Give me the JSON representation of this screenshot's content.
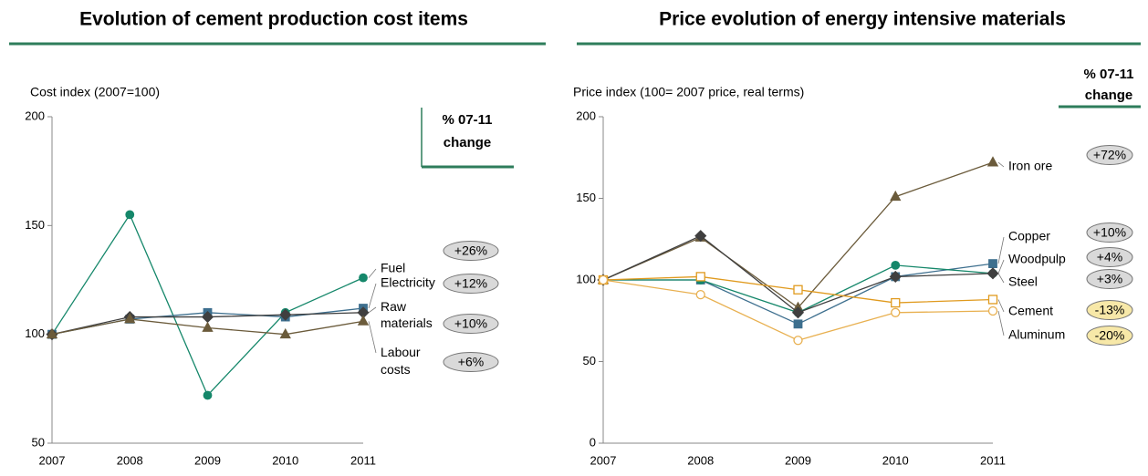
{
  "chart_data": [
    {
      "type": "line",
      "title": "Evolution of cement production cost items",
      "ylabel": "Cost index (2007=100)",
      "note": [
        "% 07-11",
        "change"
      ],
      "categories": [
        "2007",
        "2008",
        "2009",
        "2010",
        "2011"
      ],
      "ylim": [
        50,
        200
      ],
      "yticks": [
        50,
        100,
        150,
        200
      ],
      "series": [
        {
          "name": "Fuel",
          "color": "#15876a",
          "marker": "circle",
          "values": [
            100,
            155,
            72,
            110,
            126
          ],
          "change": "+26%"
        },
        {
          "name": "Electricity",
          "color": "#3d6f8e",
          "marker": "square",
          "values": [
            100,
            107,
            110,
            108,
            112
          ],
          "change": "+12%"
        },
        {
          "name": "Raw materials",
          "color": "#3f3f3f",
          "marker": "diamond",
          "values": [
            100,
            108,
            108,
            109,
            110
          ],
          "change": "+10%"
        },
        {
          "name": "Labour costs",
          "color": "#6b5b3b",
          "marker": "triangle",
          "values": [
            100,
            107,
            103,
            100,
            106
          ],
          "change": "+6%"
        }
      ]
    },
    {
      "type": "line",
      "title": "Price evolution of energy intensive materials",
      "ylabel": "Price index (100= 2007 price, real terms)",
      "note": [
        "% 07-11",
        "change"
      ],
      "categories": [
        "2007",
        "2008",
        "2009",
        "2010",
        "2011"
      ],
      "ylim": [
        0,
        200
      ],
      "yticks": [
        0,
        50,
        100,
        150,
        200
      ],
      "series": [
        {
          "name": "Iron ore",
          "color": "#6b5b3b",
          "marker": "triangle",
          "values": [
            100,
            126,
            83,
            151,
            172
          ],
          "change": "+72%"
        },
        {
          "name": "Copper",
          "color": "#3d6f8e",
          "marker": "square",
          "values": [
            100,
            100,
            73,
            102,
            110
          ],
          "change": "+10%"
        },
        {
          "name": "Woodpulp",
          "color": "#15876a",
          "marker": "circle",
          "values": [
            100,
            100,
            80,
            109,
            104
          ],
          "change": "+4%"
        },
        {
          "name": "Steel",
          "color": "#3f3f3f",
          "marker": "diamond",
          "values": [
            100,
            127,
            80,
            102,
            104
          ],
          "change": "+3%"
        },
        {
          "name": "Cement",
          "color": "#e09a1e",
          "marker": "open-square",
          "values": [
            100,
            102,
            94,
            86,
            88
          ],
          "change": "-13%"
        },
        {
          "name": "Aluminum",
          "color": "#e8b050",
          "marker": "open-circle",
          "values": [
            100,
            91,
            63,
            80,
            81
          ],
          "change": "-20%"
        }
      ]
    }
  ]
}
